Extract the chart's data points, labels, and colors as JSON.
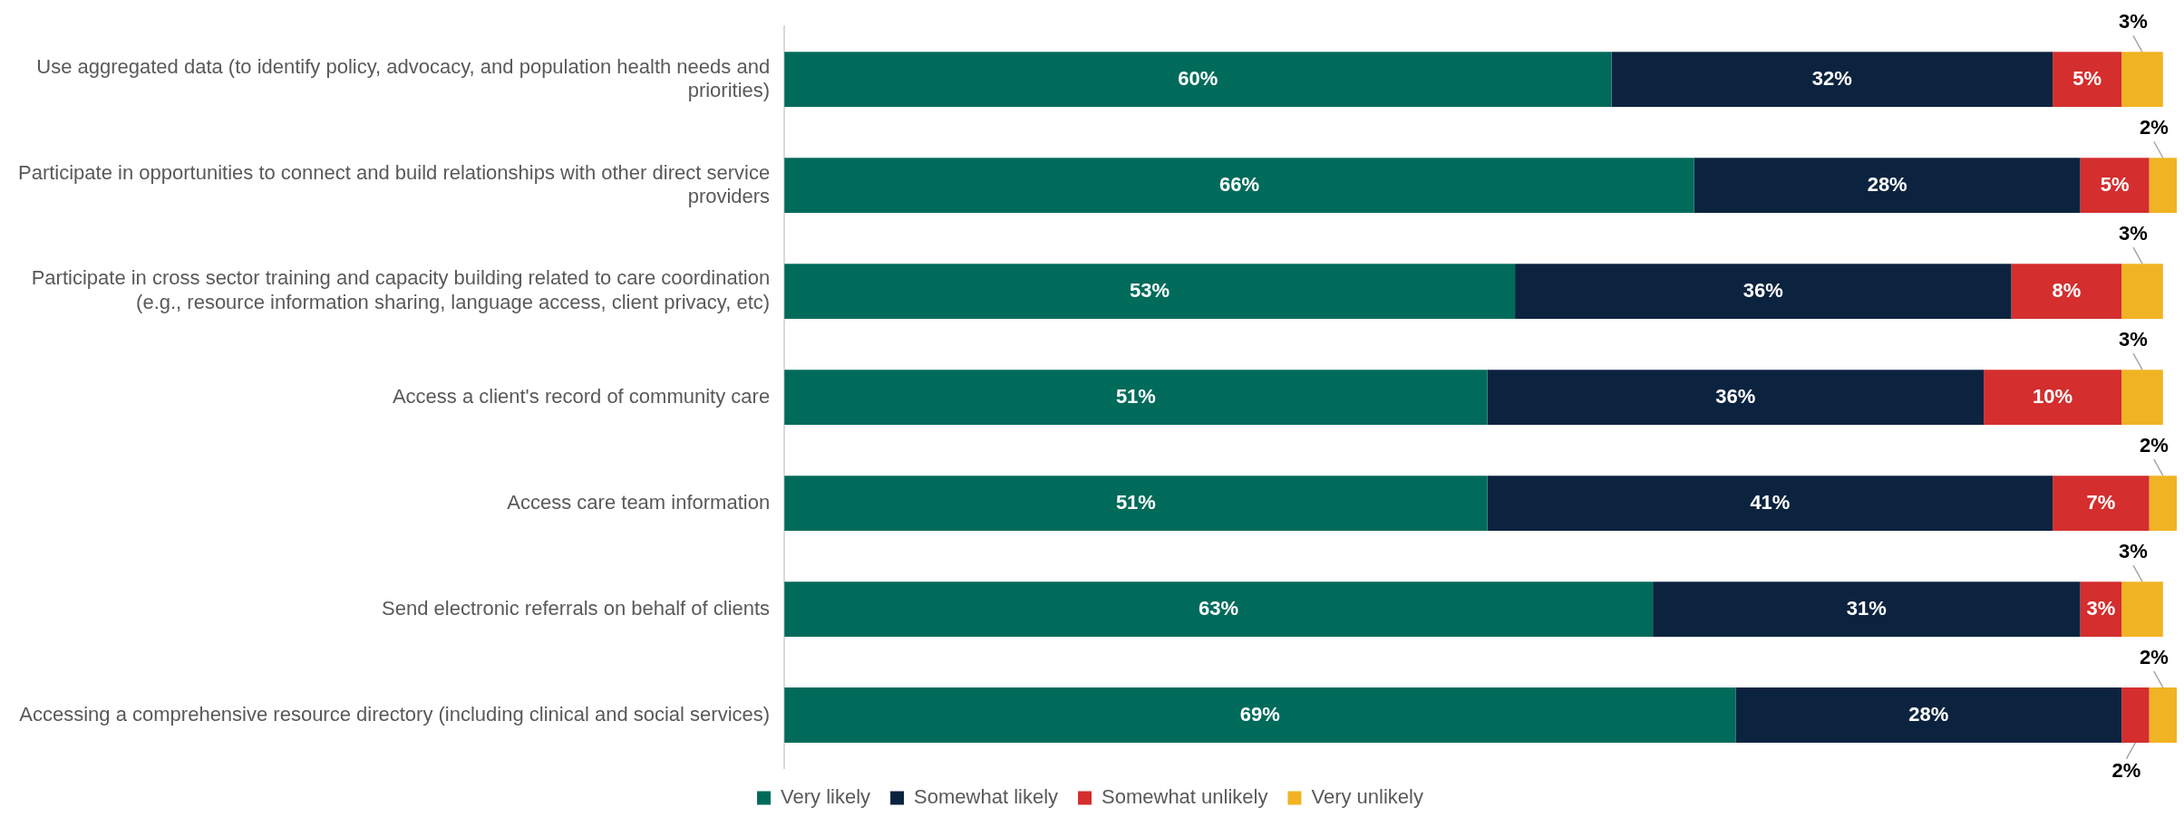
{
  "chart_data": {
    "type": "bar",
    "orientation": "horizontal",
    "stacked": true,
    "tick_labels": "y",
    "legend": "bottom",
    "xlim": [
      0,
      101
    ],
    "categories": [
      "Use aggregated data (to identify policy, advocacy, and population health needs and priorities)",
      "Participate in opportunities to connect and build relationships with other direct service providers",
      "Participate in cross sector training and capacity building related to care coordination (e.g., resource information sharing, language access, client privacy, etc)",
      "Access a client's record of community care",
      "Access care team information",
      "Send electronic referrals on behalf of clients",
      "Accessing a comprehensive resource directory (including clinical and social services)"
    ],
    "series": [
      {
        "name": "Very likely",
        "color": "#006b5b",
        "values": [
          60,
          66,
          53,
          51,
          51,
          63,
          69
        ],
        "value_labels": [
          "60%",
          "66%",
          "53%",
          "51%",
          "51%",
          "63%",
          "69%"
        ]
      },
      {
        "name": "Somewhat likely",
        "color": "#0c2340",
        "values": [
          32,
          28,
          36,
          36,
          41,
          31,
          28
        ],
        "value_labels": [
          "32%",
          "28%",
          "36%",
          "36%",
          "41%",
          "31%",
          "28%"
        ]
      },
      {
        "name": "Somewhat unlikely",
        "color": "#d42e2e",
        "values": [
          5,
          5,
          8,
          10,
          7,
          3,
          2
        ],
        "value_labels": [
          "5%",
          "5%",
          "8%",
          "10%",
          "7%",
          "3%",
          "2%"
        ]
      },
      {
        "name": "Very unlikely",
        "color": "#f0b323",
        "values": [
          3,
          2,
          3,
          3,
          2,
          3,
          2
        ],
        "value_labels": [
          "3%",
          "2%",
          "3%",
          "3%",
          "2%",
          "3%",
          "2%"
        ]
      }
    ]
  }
}
